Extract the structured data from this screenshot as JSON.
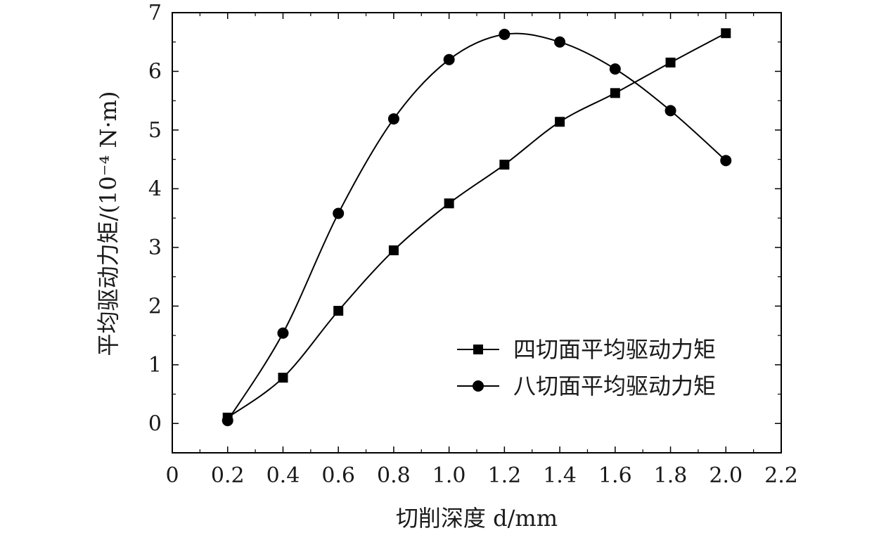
{
  "chart_data": {
    "type": "line",
    "xlabel": "切削深度 d/mm",
    "ylabel": "平均驱动力矩/(10⁻⁴ N·m)",
    "xlim": [
      0,
      2.2
    ],
    "ylim": [
      -0.5,
      7
    ],
    "x_ticks": [
      "0",
      "0.2",
      "0.4",
      "0.6",
      "0.8",
      "1.0",
      "1.2",
      "1.4",
      "1.6",
      "1.8",
      "2.0",
      "2.2"
    ],
    "y_ticks": [
      "0",
      "1",
      "2",
      "3",
      "4",
      "5",
      "6",
      "7"
    ],
    "grid": false,
    "legend_position": "lower-right",
    "series": [
      {
        "name": "四切面平均驱动力矩",
        "marker": "square",
        "color": "#000000",
        "x": [
          0.2,
          0.4,
          0.6,
          0.8,
          1.0,
          1.2,
          1.4,
          1.6,
          1.8,
          2.0
        ],
        "values": [
          0.1,
          0.78,
          1.92,
          2.95,
          3.75,
          4.41,
          5.14,
          5.63,
          6.15,
          6.65
        ]
      },
      {
        "name": "八切面平均驱动力矩",
        "marker": "circle",
        "color": "#000000",
        "x": [
          0.2,
          0.4,
          0.6,
          0.8,
          1.0,
          1.2,
          1.4,
          1.6,
          1.8,
          2.0
        ],
        "values": [
          0.05,
          1.54,
          3.58,
          5.19,
          6.2,
          6.63,
          6.5,
          6.04,
          5.33,
          4.48
        ]
      }
    ]
  }
}
